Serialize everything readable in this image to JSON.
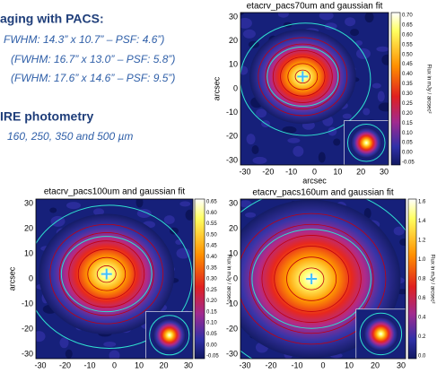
{
  "intro": {
    "heading": "aging with PACS:",
    "lines": [
      "FWHM: 14.3” x 10.7” – PSF: 4.6”)",
      "(FWHM: 16.7” x 13.0” – PSF: 5.8”)",
      "(FWHM: 17.6” x 14.6” – PSF: 9.5”)"
    ],
    "heading2": "IRE photometry",
    "line2": "160, 250, 350 and 500 µm"
  },
  "panels": [
    {
      "title": "etacrv_pacs70um and gaussian fit",
      "xlabel": "arcsec",
      "ylabel": "arcsec",
      "xticks": [
        "-30",
        "-20",
        "-10",
        "0",
        "10",
        "20",
        "30"
      ],
      "yticks": [
        "30",
        "20",
        "10",
        "0",
        "-10",
        "-20",
        "-30"
      ],
      "colorbar_ticks": [
        "0.70",
        "0.65",
        "0.60",
        "0.55",
        "0.50",
        "0.45",
        "0.40",
        "0.35",
        "0.30",
        "0.25",
        "0.20",
        "0.15",
        "0.10",
        "0.05",
        "0.00",
        "-0.05"
      ],
      "colorbar_label": "Flux in mJy / arcsec²"
    },
    {
      "title": "etacrv_pacs100um and gaussian fit",
      "ylabel": "arcsec",
      "xticks": [
        "-30",
        "-20",
        "-10",
        "0",
        "10",
        "20",
        "30"
      ],
      "yticks": [
        "30",
        "20",
        "10",
        "0",
        "-10",
        "-20",
        "-30"
      ],
      "colorbar_ticks": [
        "0.65",
        "0.60",
        "0.55",
        "0.50",
        "0.45",
        "0.40",
        "0.35",
        "0.30",
        "0.25",
        "0.20",
        "0.15",
        "0.10",
        "0.05",
        "0.00",
        "-0.05"
      ],
      "colorbar_label": "Flux in mJy / arcsec²"
    },
    {
      "title": "etacrv_pacs160um and gaussian fit",
      "xticks": [
        "-30",
        "-20",
        "-10",
        "0",
        "10",
        "20",
        "30"
      ],
      "yticks": [
        "30",
        "20",
        "10",
        "0",
        "-10",
        "-20",
        "-30"
      ],
      "colorbar_ticks": [
        "1.6",
        "1.4",
        "1.2",
        "1.0",
        "0.8",
        "0.6",
        "0.4",
        "0.2",
        "0.0"
      ],
      "colorbar_label": "Flux in mJy / arcsec²"
    }
  ]
}
